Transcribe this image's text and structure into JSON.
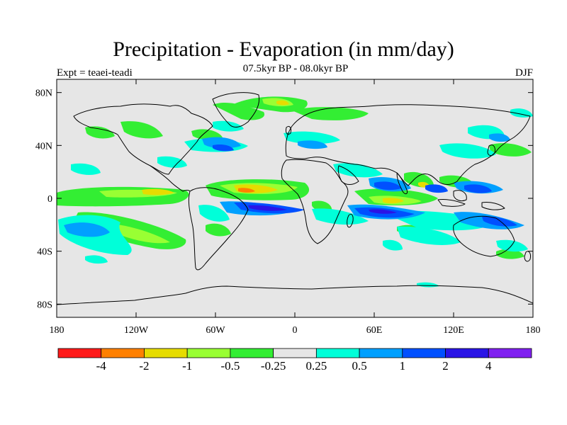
{
  "title": "Precipitation - Evaporation (in mm/day)",
  "subtitle": "07.5kyr BP - 08.0kyr BP",
  "left_label": "Expt = teaei-teadi",
  "right_label": "DJF",
  "map": {
    "projection": "cylindrical-equidistant",
    "ocean_fill": "#e6e6e6",
    "coastline_color": "#000000",
    "lon_range": [
      -180,
      180
    ],
    "lat_range": [
      -90,
      90
    ],
    "y_ticks": [
      {
        "lat": 80,
        "label": "80N"
      },
      {
        "lat": 40,
        "label": "40N"
      },
      {
        "lat": 0,
        "label": "0"
      },
      {
        "lat": -40,
        "label": "40S"
      },
      {
        "lat": -80,
        "label": "80S"
      }
    ],
    "x_ticks": [
      {
        "lon": -180,
        "label": "180"
      },
      {
        "lon": -120,
        "label": "120W"
      },
      {
        "lon": -60,
        "label": "60W"
      },
      {
        "lon": 0,
        "label": "0"
      },
      {
        "lon": 60,
        "label": "60E"
      },
      {
        "lon": 120,
        "label": "120E"
      },
      {
        "lon": 180,
        "label": "180"
      }
    ]
  },
  "colorbar": {
    "colors": [
      "#ff1a1a",
      "#ff8000",
      "#e6dc00",
      "#99ff33",
      "#33ee33",
      "#e6e6e6",
      "#00ffd9",
      "#00a0ff",
      "#0050ff",
      "#2a14e6",
      "#8020f0"
    ],
    "labels": [
      "-4",
      "-2",
      "-1",
      "-0.5",
      "-0.25",
      "0.25",
      "0.5",
      "1",
      "2",
      "4"
    ]
  }
}
